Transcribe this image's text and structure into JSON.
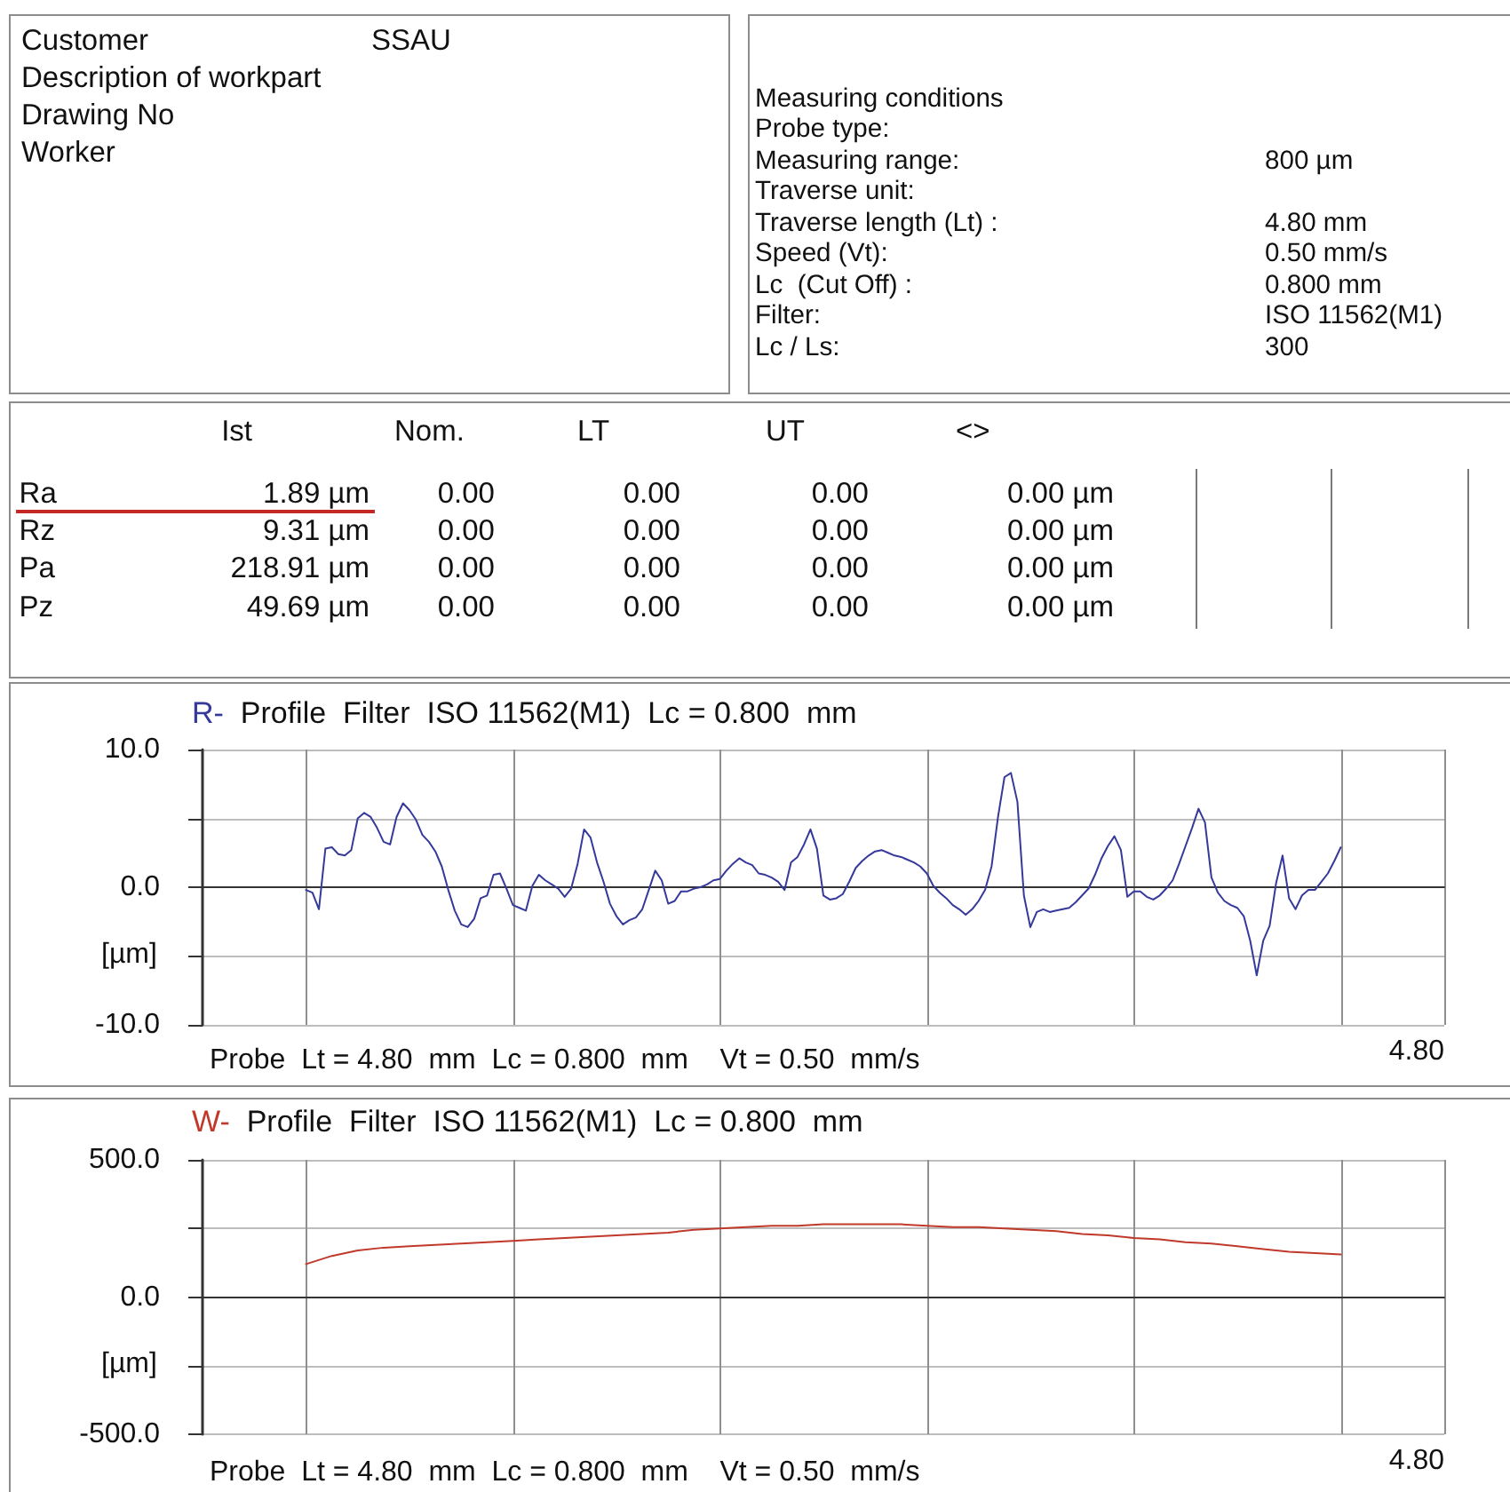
{
  "chart_data": [
    {
      "type": "other",
      "categories": [
        "Customer",
        "Description of workpart",
        "Drawing No",
        "Worker"
      ],
      "value_labels": [
        "SSAU",
        null,
        null,
        null
      ]
    },
    {
      "type": "other",
      "title": "Measuring conditions",
      "annotations": [
        "Probe type:",
        "Measuring range:",
        "Traverse unit:",
        "Traverse length (Lt) :",
        "Speed (Vt):",
        "Lc  (Cut Off) :",
        "Filter:",
        "Lc / Ls:"
      ],
      "value_labels": [
        null,
        "800 µm",
        null,
        "4.80 mm",
        "0.50 mm/s",
        "0.800 mm",
        "ISO 11562(M1)",
        "300"
      ]
    },
    {
      "type": "other",
      "categories": [
        "Ist",
        "Nom.",
        "LT",
        "UT",
        "<>"
      ],
      "y_categories": [
        "Ra",
        "Rz",
        "Pa",
        "Pz"
      ],
      "cell_labels": [
        [
          "1.89 µm",
          "0.00",
          "0.00",
          "0.00",
          "0.00 µm"
        ],
        [
          "9.31 µm",
          "0.00",
          "0.00",
          "0.00",
          "0.00 µm"
        ],
        [
          "218.91 µm",
          "0.00",
          "0.00",
          "0.00",
          "0.00 µm"
        ],
        [
          "49.69 µm",
          "0.00",
          "0.00",
          "0.00",
          "0.00 µm"
        ]
      ]
    },
    {
      "type": "line",
      "title": "R-  Profile  Filter  ISO 11562(M1)  Lc = 0.800  mm",
      "xlabel": "Probe  Lt = 4.80  mm  Lc = 0.800  mm    Vt = 0.50  mm/s",
      "ylabel": "[µm]",
      "annotations": [
        "4.80"
      ],
      "marker": "none",
      "grid": true,
      "color": "#35399a",
      "categories": [
        null,
        null,
        null,
        null,
        null,
        null,
        null,
        null,
        null,
        null,
        null,
        null,
        null,
        null,
        null,
        null,
        null,
        null,
        null,
        null,
        null,
        null,
        null,
        null,
        null,
        null,
        null,
        null,
        null,
        null,
        null,
        null,
        null,
        null,
        null,
        null,
        null,
        null,
        null,
        null,
        null,
        null,
        null,
        null,
        null,
        null,
        null,
        null,
        null,
        null,
        null,
        null,
        null,
        null,
        null,
        null,
        null,
        null,
        null,
        null,
        null,
        null,
        null,
        null,
        null,
        null,
        null,
        null,
        null,
        null,
        null,
        null,
        null,
        null,
        null,
        null,
        null,
        null,
        null,
        null,
        null,
        null,
        null,
        null,
        null,
        null,
        null,
        null,
        null,
        null,
        null,
        null,
        null,
        null,
        null,
        null,
        null,
        null,
        null,
        null,
        null,
        null,
        null,
        null,
        null,
        null,
        null,
        null,
        null,
        null,
        null,
        null,
        null,
        null,
        null,
        null,
        null,
        null,
        null,
        null,
        null,
        null,
        null,
        null,
        null,
        null,
        null,
        null,
        null,
        null,
        null,
        null,
        null,
        null,
        null,
        null,
        null,
        null,
        null,
        null,
        null,
        null,
        null,
        null,
        null,
        null,
        null,
        null,
        null,
        null,
        null,
        null,
        null,
        null,
        null,
        null,
        null,
        null,
        null,
        null,
        null,
        null,
        null,
        null,
        null,
        null,
        null,
        null,
        null,
        null,
        null,
        null,
        null,
        null,
        null,
        null,
        null,
        null,
        null,
        null,
        null,
        null,
        null,
        null,
        null,
        null,
        null,
        null,
        null,
        null,
        null,
        null,
        null
      ],
      "values": [
        null,
        null,
        null,
        null,
        null,
        null,
        null,
        null,
        null,
        null,
        null,
        null,
        null,
        null,
        null,
        null,
        -0.2,
        -0.4,
        -1.6,
        2.8,
        2.9,
        2.4,
        2.3,
        2.7,
        5.0,
        5.4,
        5.1,
        4.3,
        3.3,
        3.1,
        5.1,
        6.1,
        5.6,
        4.9,
        3.8,
        3.3,
        2.6,
        1.5,
        -0.2,
        -1.7,
        -2.7,
        -2.9,
        -2.3,
        -0.8,
        -0.6,
        0.9,
        1.0,
        -0.1,
        -1.3,
        -1.5,
        -1.7,
        0.1,
        0.9,
        0.5,
        0.2,
        -0.1,
        -0.7,
        -0.1,
        1.7,
        4.2,
        3.6,
        1.8,
        0.4,
        -1.2,
        -2.1,
        -2.7,
        -2.4,
        -2.2,
        -1.6,
        -0.2,
        1.2,
        0.5,
        -1.2,
        -1.0,
        -0.3,
        -0.3,
        -0.1,
        0.0,
        0.2,
        0.5,
        0.6,
        1.2,
        1.7,
        2.1,
        1.8,
        1.6,
        1.0,
        0.9,
        0.7,
        0.4,
        -0.2,
        1.8,
        2.2,
        3.1,
        4.2,
        2.8,
        -0.6,
        -0.9,
        -0.8,
        -0.5,
        0.4,
        1.4,
        1.9,
        2.3,
        2.6,
        2.7,
        2.5,
        2.3,
        2.2,
        2.0,
        1.8,
        1.5,
        1.0,
        0.1,
        -0.4,
        -0.8,
        -1.3,
        -1.6,
        -2.0,
        -1.6,
        -1.0,
        -0.2,
        1.5,
        5.1,
        8.0,
        8.3,
        6.2,
        -0.6,
        -2.9,
        -1.8,
        -1.6,
        -1.8,
        -1.7,
        -1.6,
        -1.5,
        -1.1,
        -0.6,
        -0.1,
        0.9,
        2.1,
        3.0,
        3.7,
        2.7,
        -0.7,
        -0.3,
        -0.3,
        -0.7,
        -0.9,
        -0.6,
        -0.1,
        0.5,
        1.7,
        3.0,
        4.3,
        5.7,
        4.7,
        0.7,
        -0.4,
        -1.0,
        -1.3,
        -1.5,
        -2.1,
        -3.9,
        -6.4,
        -3.9,
        -2.8,
        0.3,
        2.3,
        -0.8,
        -1.6,
        -0.6,
        -0.2,
        -0.2,
        0.4,
        1.0,
        1.9,
        2.9,
        null,
        null,
        null,
        null,
        null,
        null,
        null,
        null,
        null,
        null,
        null,
        null,
        null,
        null,
        null,
        null
      ],
      "ylim": [
        -10,
        10
      ],
      "yticks": [
        {
          "value": -10,
          "label": "-10.0"
        },
        {
          "value": -5,
          "label": null
        },
        {
          "value": 0,
          "label": "0.0"
        },
        {
          "value": 5,
          "label": null
        },
        {
          "value": 10,
          "label": "10.0"
        }
      ]
    },
    {
      "type": "line",
      "title": "W-  Profile  Filter  ISO 11562(M1)  Lc = 0.800  mm",
      "xlabel": "Probe  Lt = 4.80  mm  Lc = 0.800  mm    Vt = 0.50  mm/s",
      "ylabel": "[µm]",
      "annotations": [
        "4.80"
      ],
      "marker": "none",
      "grid": true,
      "color": "#c0392b",
      "categories": [
        null,
        null,
        null,
        null,
        null,
        null,
        null,
        null,
        null,
        null,
        null,
        null,
        null,
        null,
        null,
        null,
        null,
        null,
        null,
        null,
        null,
        null,
        null,
        null,
        null,
        null,
        null,
        null,
        null,
        null,
        null,
        null,
        null,
        null,
        null,
        null,
        null,
        null,
        null,
        null,
        null,
        null,
        null,
        null,
        null,
        null,
        null,
        null,
        null
      ],
      "values": [
        null,
        null,
        null,
        null,
        120,
        150,
        170,
        180,
        185,
        190,
        195,
        200,
        205,
        210,
        215,
        220,
        225,
        230,
        235,
        245,
        250,
        255,
        260,
        260,
        265,
        265,
        265,
        265,
        260,
        255,
        255,
        250,
        245,
        240,
        230,
        225,
        215,
        210,
        200,
        195,
        185,
        175,
        165,
        160,
        155,
        null,
        null,
        null,
        null
      ],
      "ylim": [
        -500,
        500
      ],
      "yticks": [
        {
          "value": -500,
          "label": "-500.0"
        },
        {
          "value": -250,
          "label": null
        },
        {
          "value": 0,
          "label": "0.0"
        },
        {
          "value": 250,
          "label": null
        },
        {
          "value": 500,
          "label": "500.0"
        }
      ]
    }
  ]
}
